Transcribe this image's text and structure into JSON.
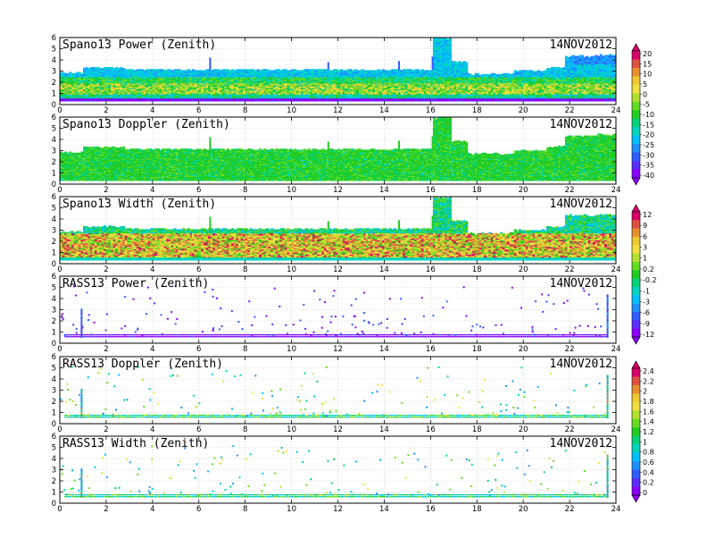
{
  "chart_data": [
    {
      "type": "heatmap",
      "title": "Spano13 Power (Zenith)",
      "date": "14NOV2012",
      "style": "power",
      "xlim": [
        0,
        24
      ],
      "ylim": [
        0,
        6
      ],
      "xticks": [
        0,
        2,
        4,
        6,
        8,
        10,
        12,
        14,
        16,
        18,
        20,
        22,
        24
      ],
      "yticks": [
        0,
        1,
        2,
        3,
        4,
        5,
        6
      ],
      "colorbar": "A"
    },
    {
      "type": "heatmap",
      "title": "Spano13 Doppler (Zenith)",
      "date": "14NOV2012",
      "style": "doppler",
      "xlim": [
        0,
        24
      ],
      "ylim": [
        0,
        6
      ],
      "xticks": [
        0,
        2,
        4,
        6,
        8,
        10,
        12,
        14,
        16,
        18,
        20,
        22,
        24
      ],
      "yticks": [
        0,
        1,
        2,
        3,
        4,
        5,
        6
      ],
      "colorbar": "A"
    },
    {
      "type": "heatmap",
      "title": "Spano13 Width (Zenith)",
      "date": "14NOV2012",
      "style": "width",
      "xlim": [
        0,
        24
      ],
      "ylim": [
        0,
        6
      ],
      "xticks": [
        0,
        2,
        4,
        6,
        8,
        10,
        12,
        14,
        16,
        18,
        20,
        22,
        24
      ],
      "yticks": [
        0,
        1,
        2,
        3,
        4,
        5,
        6
      ],
      "colorbar": "B"
    },
    {
      "type": "heatmap",
      "title": "RASS13 Power (Zenith)",
      "date": "14NOV2012",
      "style": "rasspower",
      "xlim": [
        0,
        24
      ],
      "ylim": [
        0,
        6
      ],
      "xticks": [
        0,
        2,
        4,
        6,
        8,
        10,
        12,
        14,
        16,
        18,
        20,
        22,
        24
      ],
      "yticks": [
        0,
        1,
        2,
        3,
        4,
        5,
        6
      ],
      "colorbar": "B"
    },
    {
      "type": "heatmap",
      "title": "RASS13 Doppler (Zenith)",
      "date": "14NOV2012",
      "style": "rassdop",
      "xlim": [
        0,
        24
      ],
      "ylim": [
        0,
        6
      ],
      "xticks": [
        0,
        2,
        4,
        6,
        8,
        10,
        12,
        14,
        16,
        18,
        20,
        22,
        24
      ],
      "yticks": [
        0,
        1,
        2,
        3,
        4,
        5,
        6
      ],
      "colorbar": "C"
    },
    {
      "type": "heatmap",
      "title": "RASS13 Width (Zenith)",
      "date": "14NOV2012",
      "style": "rasswidth",
      "xlim": [
        0,
        24
      ],
      "ylim": [
        0,
        6
      ],
      "xticks": [
        0,
        2,
        4,
        6,
        8,
        10,
        12,
        14,
        16,
        18,
        20,
        22,
        24
      ],
      "yticks": [
        0,
        1,
        2,
        3,
        4,
        5,
        6
      ],
      "colorbar": "C"
    }
  ],
  "colorbars": {
    "A": {
      "labels": [
        "20",
        "15",
        "10",
        "5",
        "0",
        "-5",
        "-10",
        "-15",
        "-20",
        "-25",
        "-30",
        "-35",
        "-40"
      ]
    },
    "B": {
      "labels": [
        "12",
        "9",
        "6",
        "3",
        "1",
        "0.2",
        "-0.2",
        "-1",
        "-3",
        "-6",
        "-9",
        "-12"
      ]
    },
    "C": {
      "labels": [
        "2.4",
        "2.2",
        "2",
        "1.8",
        "1.6",
        "1.4",
        "1.2",
        "1",
        "0.8",
        "0.6",
        "0.4",
        "0.2",
        "0"
      ]
    }
  },
  "palette": [
    "#8b00ff",
    "#5a2dff",
    "#2f5dff",
    "#1e90ff",
    "#00bfff",
    "#00d5c0",
    "#00d27a",
    "#22cc22",
    "#66dd22",
    "#b4e032",
    "#f0e040",
    "#f0c830",
    "#e89030",
    "#e05040",
    "#d8006a"
  ]
}
